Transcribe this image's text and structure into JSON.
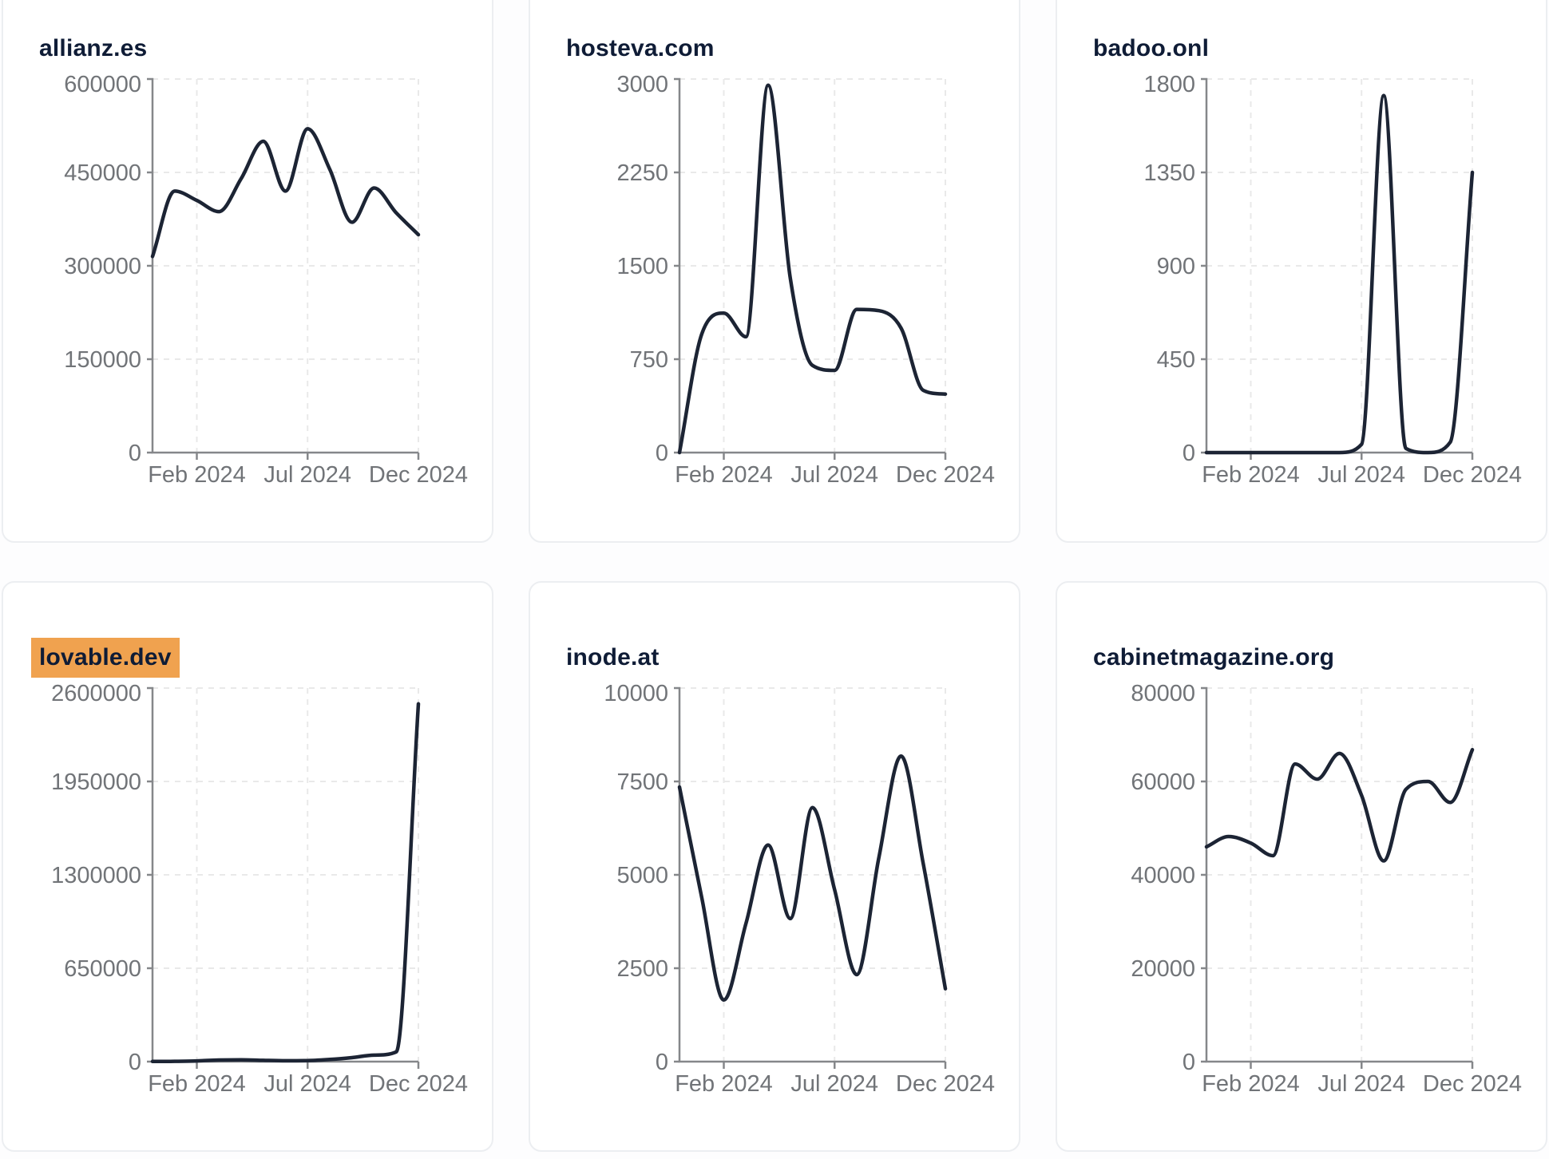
{
  "page": {
    "description": "Dashboard grid of six domain traffic line charts, monthly values Dec 2023 through Dec 2024",
    "highlighted_chart": "lovable.dev"
  },
  "colors": {
    "line": "#1c2434",
    "title_text": "#0f1c36",
    "tick_text": "#717478",
    "axis": "#85878a",
    "grid": "#e9e9e9",
    "highlight": "#f0a24f",
    "card_border": "#eceef1",
    "card_bg": "#ffffff",
    "page_bg": "#fdfdfe"
  },
  "months": [
    "Dec 2023",
    "Jan 2024",
    "Feb 2024",
    "Mar 2024",
    "Apr 2024",
    "May 2024",
    "Jun 2024",
    "Jul 2024",
    "Aug 2024",
    "Sep 2024",
    "Oct 2024",
    "Nov 2024",
    "Dec 2024"
  ],
  "x_axis": {
    "tick_labels": [
      "Feb 2024",
      "Jul 2024",
      "Dec 2024"
    ],
    "tick_month_index": [
      2,
      7,
      12
    ]
  },
  "chart_data": [
    {
      "type": "line",
      "title": "allianz.es",
      "highlighted": false,
      "ylim": [
        0,
        600000
      ],
      "y_ticks": [
        0,
        150000,
        300000,
        450000,
        600000
      ],
      "x_tick_labels": [
        "Feb 2024",
        "Jul 2024",
        "Dec 2024"
      ],
      "x": [
        "Dec 2023",
        "Jan 2024",
        "Feb 2024",
        "Mar 2024",
        "Apr 2024",
        "May 2024",
        "Jun 2024",
        "Jul 2024",
        "Aug 2024",
        "Sep 2024",
        "Oct 2024",
        "Nov 2024",
        "Dec 2024"
      ],
      "values": [
        315000,
        420000,
        405000,
        387000,
        440000,
        500000,
        420000,
        520000,
        455000,
        370000,
        425000,
        385000,
        350000
      ],
      "grid": true,
      "legend": null
    },
    {
      "type": "line",
      "title": "hosteva.com",
      "highlighted": false,
      "ylim": [
        0,
        3000
      ],
      "y_ticks": [
        0,
        750,
        1500,
        2250,
        3000
      ],
      "x_tick_labels": [
        "Feb 2024",
        "Jul 2024",
        "Dec 2024"
      ],
      "x": [
        "Dec 2023",
        "Jan 2024",
        "Feb 2024",
        "Mar 2024",
        "Apr 2024",
        "May 2024",
        "Jun 2024",
        "Jul 2024",
        "Aug 2024",
        "Sep 2024",
        "Oct 2024",
        "Nov 2024",
        "Dec 2024"
      ],
      "values": [
        0,
        950,
        1120,
        930,
        2950,
        1400,
        700,
        660,
        1150,
        1140,
        1000,
        500,
        470
      ],
      "grid": true,
      "legend": null
    },
    {
      "type": "line",
      "title": "badoo.onl",
      "highlighted": false,
      "ylim": [
        0,
        1800
      ],
      "y_ticks": [
        0,
        450,
        900,
        1350,
        1800
      ],
      "x_tick_labels": [
        "Feb 2024",
        "Jul 2024",
        "Dec 2024"
      ],
      "x": [
        "Dec 2023",
        "Jan 2024",
        "Feb 2024",
        "Mar 2024",
        "Apr 2024",
        "May 2024",
        "Jun 2024",
        "Jul 2024",
        "Aug 2024",
        "Sep 2024",
        "Oct 2024",
        "Nov 2024",
        "Dec 2024"
      ],
      "values": [
        0,
        0,
        0,
        0,
        0,
        0,
        0,
        40,
        1720,
        20,
        0,
        50,
        1350
      ],
      "grid": true,
      "legend": null
    },
    {
      "type": "line",
      "title": "lovable.dev",
      "highlighted": true,
      "ylim": [
        0,
        2600000
      ],
      "y_ticks": [
        0,
        650000,
        1300000,
        1950000,
        2600000
      ],
      "x_tick_labels": [
        "Feb 2024",
        "Jul 2024",
        "Dec 2024"
      ],
      "x": [
        "Dec 2023",
        "Jan 2024",
        "Feb 2024",
        "Mar 2024",
        "Apr 2024",
        "May 2024",
        "Jun 2024",
        "Jul 2024",
        "Aug 2024",
        "Sep 2024",
        "Oct 2024",
        "Nov 2024",
        "Dec 2024"
      ],
      "values": [
        1000,
        2000,
        5000,
        11000,
        13000,
        9000,
        6000,
        7000,
        15000,
        28000,
        45000,
        68000,
        2490000
      ],
      "grid": true,
      "legend": null
    },
    {
      "type": "line",
      "title": "inode.at",
      "highlighted": false,
      "ylim": [
        0,
        10000
      ],
      "y_ticks": [
        0,
        2500,
        5000,
        7500,
        10000
      ],
      "x_tick_labels": [
        "Feb 2024",
        "Jul 2024",
        "Dec 2024"
      ],
      "x": [
        "Dec 2023",
        "Jan 2024",
        "Feb 2024",
        "Mar 2024",
        "Apr 2024",
        "May 2024",
        "Jun 2024",
        "Jul 2024",
        "Aug 2024",
        "Sep 2024",
        "Oct 2024",
        "Nov 2024",
        "Dec 2024"
      ],
      "values": [
        7350,
        4400,
        1650,
        3700,
        5800,
        3830,
        6800,
        4600,
        2330,
        5470,
        8180,
        5300,
        1950
      ],
      "grid": true,
      "legend": null
    },
    {
      "type": "line",
      "title": "cabinetmagazine.org",
      "highlighted": false,
      "ylim": [
        0,
        80000
      ],
      "y_ticks": [
        0,
        20000,
        40000,
        60000,
        80000
      ],
      "x_tick_labels": [
        "Feb 2024",
        "Jul 2024",
        "Dec 2024"
      ],
      "x": [
        "Dec 2023",
        "Jan 2024",
        "Feb 2024",
        "Mar 2024",
        "Apr 2024",
        "May 2024",
        "Jun 2024",
        "Jul 2024",
        "Aug 2024",
        "Sep 2024",
        "Oct 2024",
        "Nov 2024",
        "Dec 2024"
      ],
      "values": [
        46000,
        48200,
        46800,
        44100,
        63750,
        60500,
        66000,
        57000,
        43000,
        58300,
        60000,
        55500,
        66800
      ],
      "grid": true,
      "legend": null
    }
  ]
}
